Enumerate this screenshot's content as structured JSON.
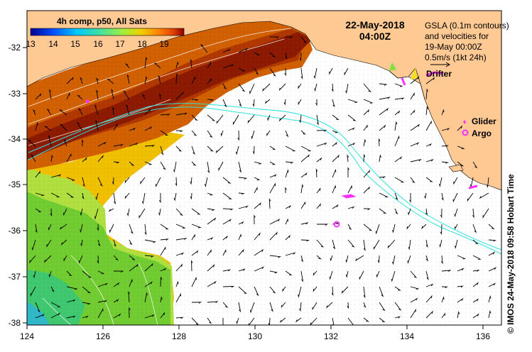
{
  "composite": {
    "label": "4h comp, p50, All Sats"
  },
  "colorbar": {
    "ticks": [
      "13",
      "14",
      "15",
      "16",
      "17",
      "18",
      "19"
    ],
    "colors": [
      "#00008f",
      "#0050ff",
      "#00c8ff",
      "#40e0a0",
      "#a0f040",
      "#f0d000",
      "#ff8000",
      "#e04000",
      "#8b0000"
    ]
  },
  "date": {
    "day": "22-May-2018",
    "time": "04:00Z"
  },
  "gsla_note": {
    "line1": "GSLA (0.1m contours)",
    "line2": "and velocities for",
    "line3": "19-May 00:00Z",
    "line4": "0.5m/s (1kt 24h)"
  },
  "legend": {
    "drifter": "Drifter",
    "glider": "Glider",
    "argo": "Argo"
  },
  "axis": {
    "x_ticks": [
      "124",
      "126",
      "128",
      "130",
      "132",
      "134",
      "136"
    ],
    "y_ticks": [
      "-32",
      "-33",
      "-34",
      "-35",
      "-36",
      "-37",
      "-38"
    ]
  },
  "credit": "© IMOS 24-May-2018 09:58 Hobart Time",
  "colors": {
    "land": "#ffc994",
    "sst_dark": "#8b1a00",
    "sst_mid": "#d06000",
    "sst_warm": "#f0a000",
    "sst_yellow": "#f0e020",
    "sst_green": "#60c830",
    "sst_cyan": "#30d0c0",
    "track": "#30e0e0",
    "marker": "#ff30ff"
  }
}
